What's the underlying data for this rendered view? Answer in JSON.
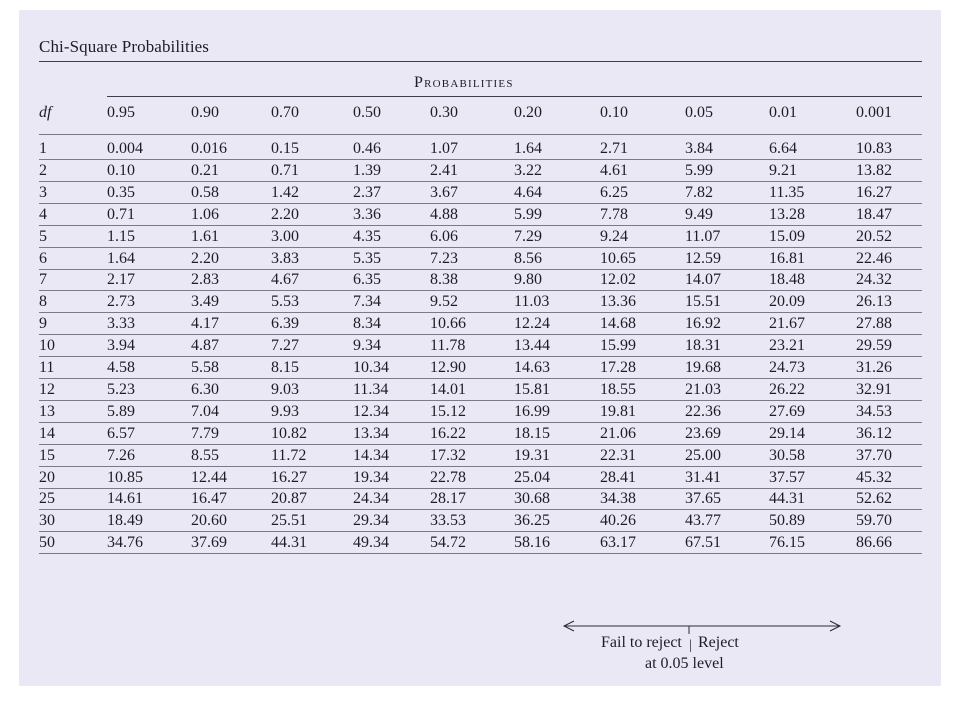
{
  "title": "Chi-Square Probabilities",
  "probabilities_header": "Probabilities",
  "df_header": "df",
  "columns": [
    "0.95",
    "0.90",
    "0.70",
    "0.50",
    "0.30",
    "0.20",
    "0.10",
    "0.05",
    "0.01",
    "0.001"
  ],
  "rows": [
    {
      "df": "1",
      "values": [
        "0.004",
        "0.016",
        "0.15",
        "0.46",
        "1.07",
        "1.64",
        "2.71",
        "3.84",
        "6.64",
        "10.83"
      ]
    },
    {
      "df": "2",
      "values": [
        "0.10",
        "0.21",
        "0.71",
        "1.39",
        "2.41",
        "3.22",
        "4.61",
        "5.99",
        "9.21",
        "13.82"
      ]
    },
    {
      "df": "3",
      "values": [
        "0.35",
        "0.58",
        "1.42",
        "2.37",
        "3.67",
        "4.64",
        "6.25",
        "7.82",
        "11.35",
        "16.27"
      ]
    },
    {
      "df": "4",
      "values": [
        "0.71",
        "1.06",
        "2.20",
        "3.36",
        "4.88",
        "5.99",
        "7.78",
        "9.49",
        "13.28",
        "18.47"
      ]
    },
    {
      "df": "5",
      "values": [
        "1.15",
        "1.61",
        "3.00",
        "4.35",
        "6.06",
        "7.29",
        "9.24",
        "11.07",
        "15.09",
        "20.52"
      ]
    },
    {
      "df": "6",
      "values": [
        "1.64",
        "2.20",
        "3.83",
        "5.35",
        "7.23",
        "8.56",
        "10.65",
        "12.59",
        "16.81",
        "22.46"
      ]
    },
    {
      "df": "7",
      "values": [
        "2.17",
        "2.83",
        "4.67",
        "6.35",
        "8.38",
        "9.80",
        "12.02",
        "14.07",
        "18.48",
        "24.32"
      ]
    },
    {
      "df": "8",
      "values": [
        "2.73",
        "3.49",
        "5.53",
        "7.34",
        "9.52",
        "11.03",
        "13.36",
        "15.51",
        "20.09",
        "26.13"
      ]
    },
    {
      "df": "9",
      "values": [
        "3.33",
        "4.17",
        "6.39",
        "8.34",
        "10.66",
        "12.24",
        "14.68",
        "16.92",
        "21.67",
        "27.88"
      ]
    },
    {
      "df": "10",
      "values": [
        "3.94",
        "4.87",
        "7.27",
        "9.34",
        "11.78",
        "13.44",
        "15.99",
        "18.31",
        "23.21",
        "29.59"
      ]
    },
    {
      "df": "11",
      "values": [
        "4.58",
        "5.58",
        "8.15",
        "10.34",
        "12.90",
        "14.63",
        "17.28",
        "19.68",
        "24.73",
        "31.26"
      ]
    },
    {
      "df": "12",
      "values": [
        "5.23",
        "6.30",
        "9.03",
        "11.34",
        "14.01",
        "15.81",
        "18.55",
        "21.03",
        "26.22",
        "32.91"
      ]
    },
    {
      "df": "13",
      "values": [
        "5.89",
        "7.04",
        "9.93",
        "12.34",
        "15.12",
        "16.99",
        "19.81",
        "22.36",
        "27.69",
        "34.53"
      ]
    },
    {
      "df": "14",
      "values": [
        "6.57",
        "7.79",
        "10.82",
        "13.34",
        "16.22",
        "18.15",
        "21.06",
        "23.69",
        "29.14",
        "36.12"
      ]
    },
    {
      "df": "15",
      "values": [
        "7.26",
        "8.55",
        "11.72",
        "14.34",
        "17.32",
        "19.31",
        "22.31",
        "25.00",
        "30.58",
        "37.70"
      ]
    },
    {
      "df": "20",
      "values": [
        "10.85",
        "12.44",
        "16.27",
        "19.34",
        "22.78",
        "25.04",
        "28.41",
        "31.41",
        "37.57",
        "45.32"
      ]
    },
    {
      "df": "25",
      "values": [
        "14.61",
        "16.47",
        "20.87",
        "24.34",
        "28.17",
        "30.68",
        "34.38",
        "37.65",
        "44.31",
        "52.62"
      ]
    },
    {
      "df": "30",
      "values": [
        "18.49",
        "20.60",
        "25.51",
        "29.34",
        "33.53",
        "36.25",
        "40.26",
        "43.77",
        "50.89",
        "59.70"
      ]
    },
    {
      "df": "50",
      "values": [
        "34.76",
        "37.69",
        "44.31",
        "49.34",
        "54.72",
        "58.16",
        "63.17",
        "67.51",
        "76.15",
        "86.66"
      ]
    }
  ],
  "footer": {
    "fail_to_reject": "Fail to reject",
    "reject": "Reject",
    "level": "at 0.05 level"
  }
}
